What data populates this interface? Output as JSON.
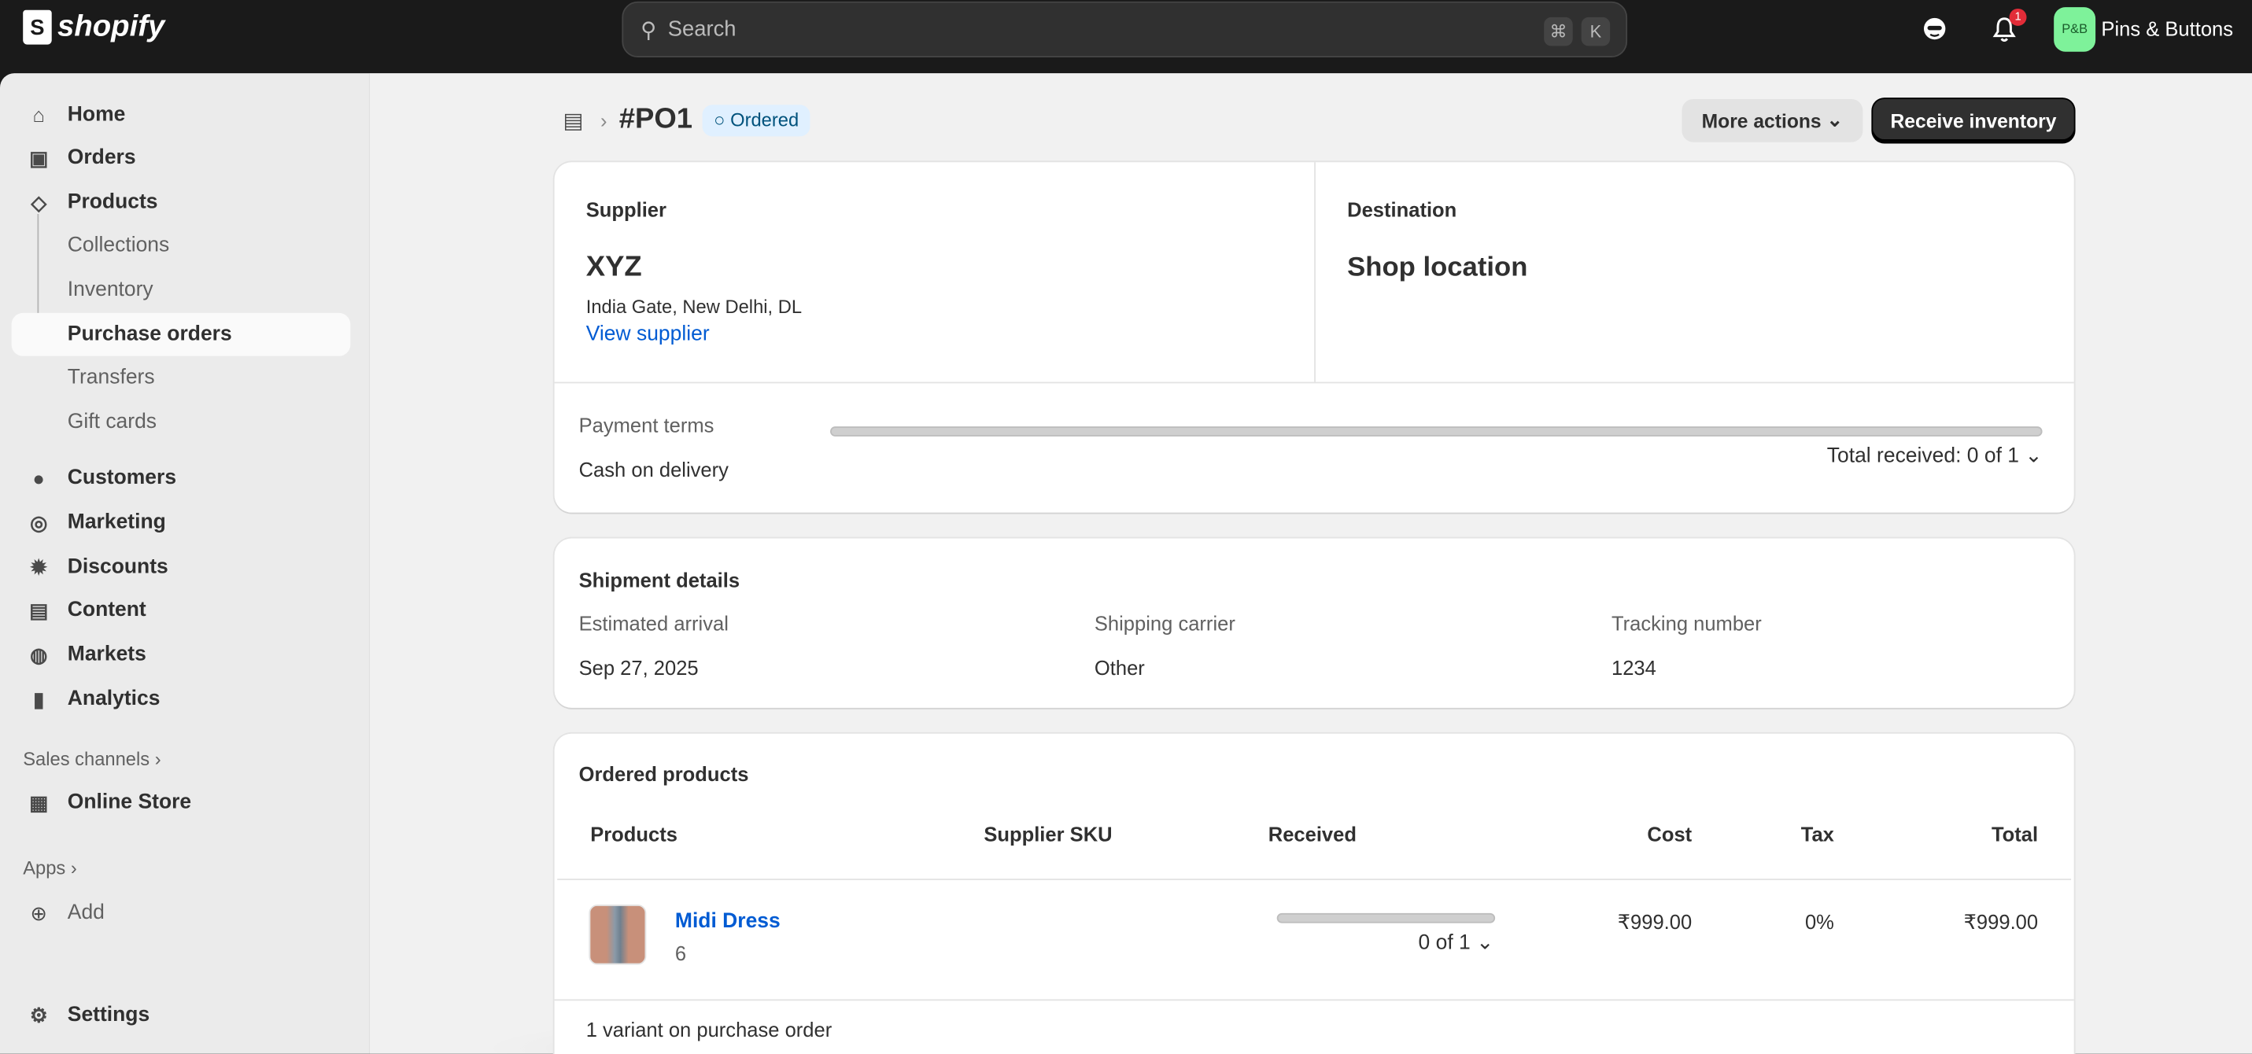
{
  "topbar": {
    "logo": "shopify",
    "search_placeholder": "Search",
    "shortcut_keys": [
      "⌘",
      "K"
    ],
    "notification_count": "1",
    "store_initials": "P&B",
    "store_name": "Pins & Buttons",
    "avatar_color": "#7ef29a"
  },
  "sidebar": {
    "items": [
      {
        "label": "Home",
        "icon": "home-icon"
      },
      {
        "label": "Orders",
        "icon": "inbox-icon"
      },
      {
        "label": "Products",
        "icon": "tag-icon"
      },
      {
        "label": "Collections"
      },
      {
        "label": "Inventory"
      },
      {
        "label": "Purchase orders",
        "selected": true
      },
      {
        "label": "Transfers"
      },
      {
        "label": "Gift cards"
      },
      {
        "label": "Customers",
        "icon": "person-icon"
      },
      {
        "label": "Marketing",
        "icon": "target-icon"
      },
      {
        "label": "Discounts",
        "icon": "discount-icon"
      },
      {
        "label": "Content",
        "icon": "image-icon"
      },
      {
        "label": "Markets",
        "icon": "globe-icon"
      },
      {
        "label": "Analytics",
        "icon": "bar-chart-icon"
      }
    ],
    "sales_channels_label": "Sales channels",
    "online_store": "Online Store",
    "apps_label": "Apps",
    "add_label": "Add",
    "settings": "Settings"
  },
  "header": {
    "title": "#PO1",
    "status": "Ordered",
    "more_actions": "More actions",
    "receive_inventory": "Receive inventory"
  },
  "supplier": {
    "heading": "Supplier",
    "name": "XYZ",
    "address": "India Gate, New Delhi, DL",
    "link": "View supplier"
  },
  "destination": {
    "heading": "Destination",
    "name": "Shop location"
  },
  "payment": {
    "label": "Payment terms",
    "value": "Cash on delivery",
    "total_received": "Total received: 0 of 1",
    "received_fraction": 0
  },
  "shipment": {
    "heading": "Shipment details",
    "fields": [
      {
        "label": "Estimated arrival",
        "value": "Sep 27, 2025"
      },
      {
        "label": "Shipping carrier",
        "value": "Other"
      },
      {
        "label": "Tracking number",
        "value": "1234"
      }
    ]
  },
  "ordered": {
    "heading": "Ordered products",
    "columns": [
      "Products",
      "Supplier SKU",
      "Received",
      "Cost",
      "Tax",
      "Total"
    ],
    "rows": [
      {
        "name": "Midi Dress",
        "variant": "6",
        "sku": "",
        "received": "0 of 1",
        "received_fraction": 0,
        "cost": "₹999.00",
        "tax": "0%",
        "total": "₹999.00"
      }
    ],
    "footer": "1 variant on purchase order"
  },
  "colors": {
    "link": "#005bd3",
    "badge_bg": "#e0f0ff"
  }
}
